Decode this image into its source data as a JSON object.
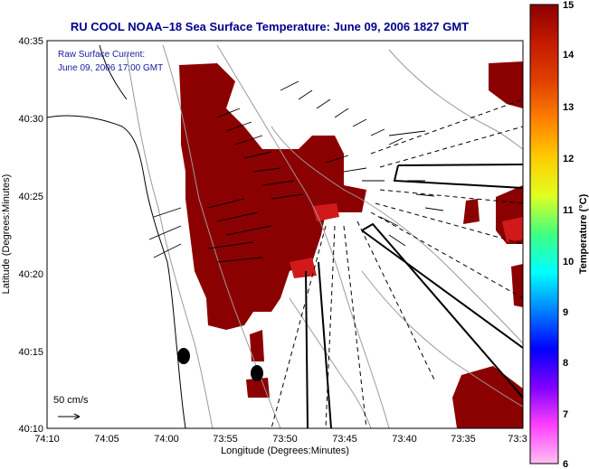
{
  "title": "RU COOL  NOAA–18  Sea Surface Temperature:  June 09, 2006 1827 GMT",
  "legend": {
    "line1": "Raw Surface Current:",
    "line2": "June 09, 2006 17:00 GMT",
    "scale_label": "50 cm/s"
  },
  "x_axis": {
    "label": "Longitude (Degrees:Minutes)",
    "ticks": [
      "74:10",
      "74:05",
      "74:00",
      "73:55",
      "73:50",
      "73:45",
      "73:40",
      "73:35",
      "73:3"
    ]
  },
  "y_axis": {
    "label": "Latitude (Degrees:Minutes)",
    "ticks": [
      "40:35",
      "40:30",
      "40:25",
      "40:20",
      "40:15",
      "40:10"
    ]
  },
  "colorbar": {
    "label": "Temperature (°C)",
    "ticks": [
      "15",
      "14",
      "13",
      "12",
      "11",
      "10",
      "9",
      "8",
      "7",
      "6"
    ],
    "stops": [
      "#8b0000",
      "#c41a00",
      "#e04000",
      "#ff8000",
      "#ffcc00",
      "#e0ff20",
      "#40ff80",
      "#00ffff",
      "#0080ff",
      "#0000ff",
      "#8000ff",
      "#ff40ff",
      "#ffc0f0"
    ]
  },
  "colors": {
    "warm_water": "#8b0000",
    "warm_water_edge": "#c8102e",
    "land": "#ffffff",
    "bathymetry": "#9a9a9a",
    "coastline": "#000000"
  }
}
